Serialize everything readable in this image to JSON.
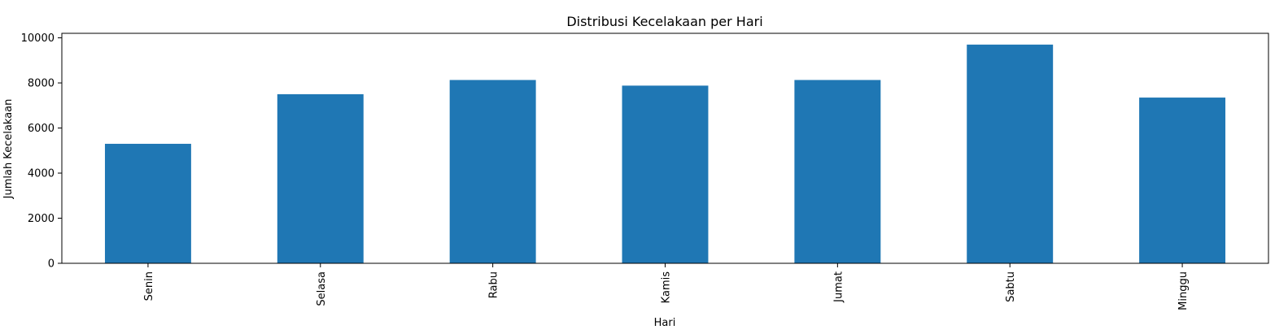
{
  "chart_data": {
    "type": "bar",
    "title": "Distribusi Kecelakaan per Hari",
    "xlabel": "Hari",
    "ylabel": "Jumlah Kecelakaan",
    "categories": [
      "Senin",
      "Selasa",
      "Rabu",
      "Kamis",
      "Jumat",
      "Sabtu",
      "Minggu"
    ],
    "values": [
      5300,
      7500,
      8130,
      7880,
      8130,
      9700,
      7350
    ],
    "ylim": [
      0,
      10200
    ],
    "yticks": [
      0,
      2000,
      4000,
      6000,
      8000,
      10000
    ],
    "grid": false,
    "legend": "none",
    "bar_color": "#1f77b4"
  }
}
